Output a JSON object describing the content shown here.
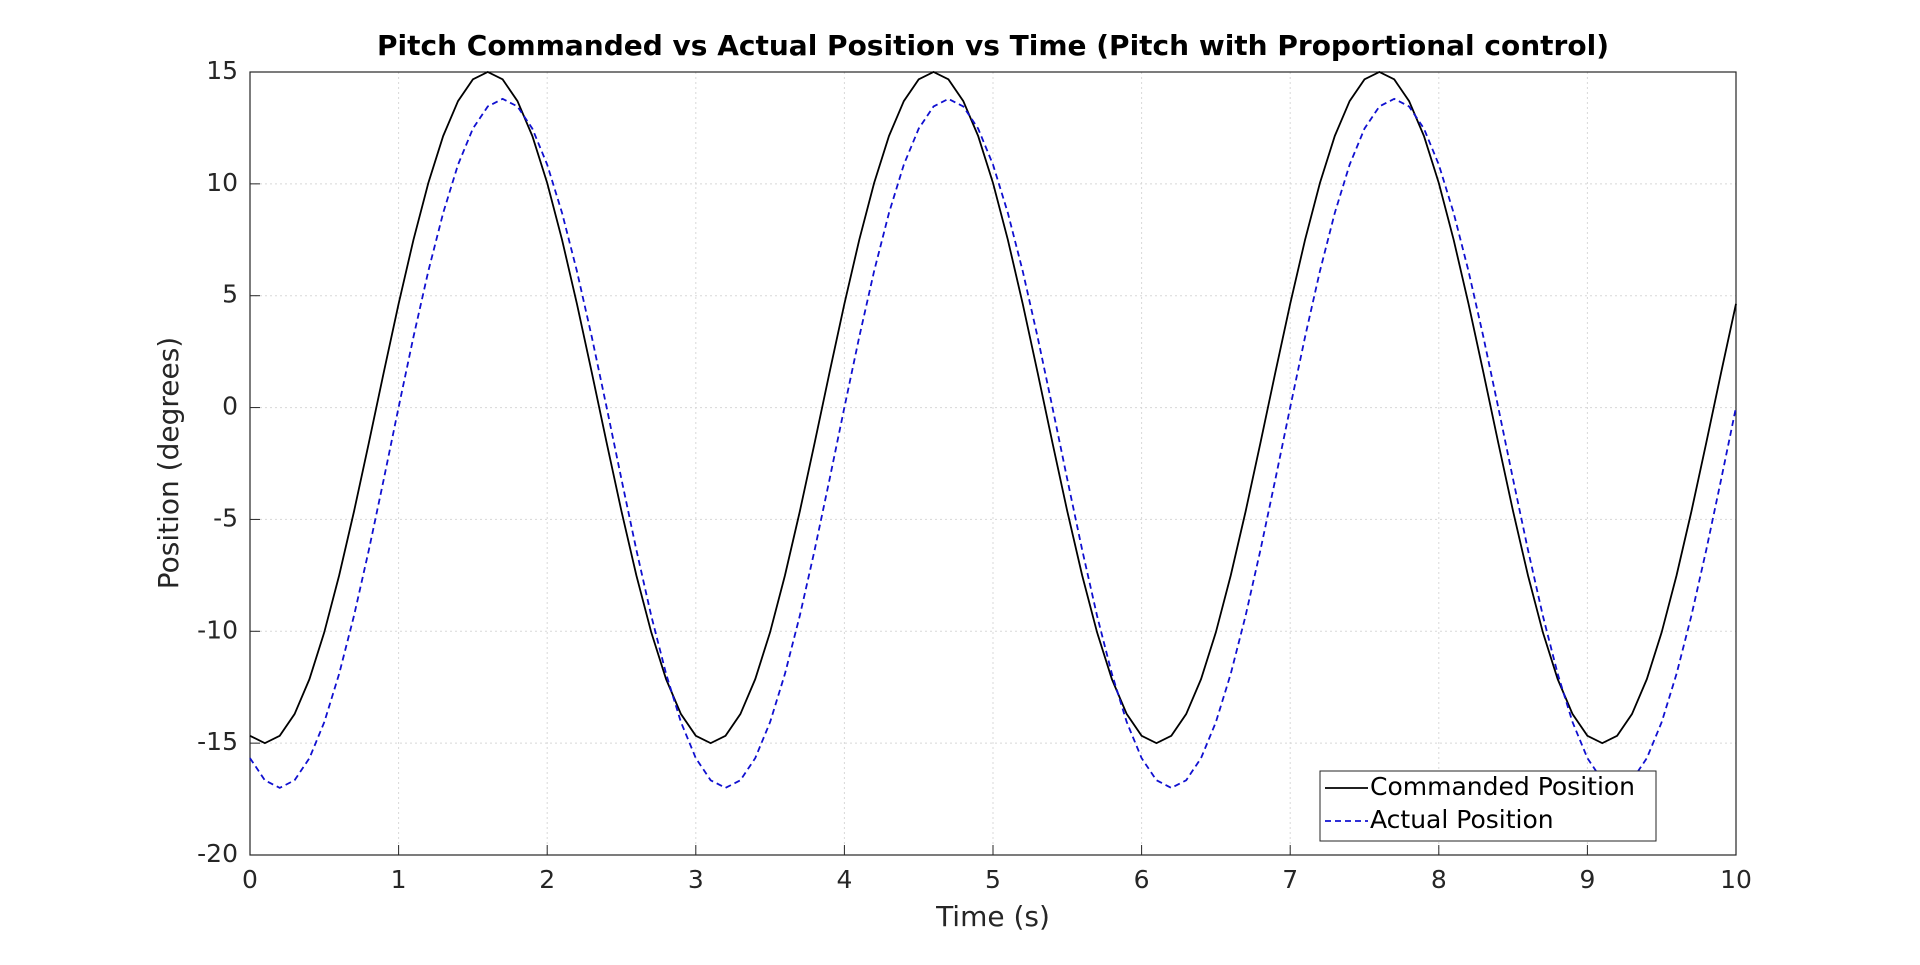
{
  "chart_data": {
    "type": "line",
    "title": "Pitch Commanded vs Actual Position vs Time (Pitch with Proportional control)",
    "x_label": "Time (s)",
    "y_label": "Position (degrees)",
    "x": [
      0,
      0.1,
      0.2,
      0.3,
      0.4,
      0.5,
      0.6,
      0.7,
      0.8,
      0.9,
      1,
      1.1,
      1.2,
      1.3,
      1.4,
      1.5,
      1.6,
      1.7,
      1.8,
      1.9,
      2,
      2.1,
      2.2,
      2.3,
      2.4,
      2.5,
      2.6,
      2.7,
      2.8,
      2.9,
      3,
      3.1,
      3.2,
      3.3,
      3.4,
      3.5,
      3.6,
      3.7,
      3.8,
      3.9,
      4,
      4.1,
      4.2,
      4.3,
      4.4,
      4.5,
      4.6,
      4.7,
      4.8,
      4.9,
      5,
      5.1,
      5.2,
      5.3,
      5.4,
      5.5,
      5.6,
      5.7,
      5.8,
      5.9,
      6,
      6.1,
      6.2,
      6.3,
      6.4,
      6.5,
      6.6,
      6.7,
      6.8,
      6.9,
      7,
      7.1,
      7.2,
      7.3,
      7.4,
      7.5,
      7.6,
      7.7,
      7.8,
      7.9,
      8,
      8.1,
      8.2,
      8.3,
      8.4,
      8.5,
      8.6,
      8.7,
      8.8,
      8.9,
      9,
      9.1,
      9.2,
      9.3,
      9.4,
      9.5,
      9.6,
      9.7,
      9.8,
      9.9,
      10
    ],
    "series": [
      {
        "name": "Commanded Position",
        "color": "#000000",
        "dash": false,
        "values": [
          -14.67,
          -15,
          -14.67,
          -13.7,
          -12.14,
          -10.04,
          -7.5,
          -4.64,
          -1.57,
          1.57,
          4.64,
          7.5,
          10.04,
          12.14,
          13.7,
          14.67,
          15,
          14.67,
          13.7,
          12.14,
          10.04,
          7.5,
          4.64,
          1.57,
          -1.57,
          -4.64,
          -7.5,
          -10.04,
          -12.14,
          -13.7,
          -14.67,
          -15,
          -14.67,
          -13.7,
          -12.14,
          -10.04,
          -7.5,
          -4.64,
          -1.57,
          1.57,
          4.64,
          7.5,
          10.04,
          12.14,
          13.7,
          14.67,
          15,
          14.67,
          13.7,
          12.14,
          10.04,
          7.5,
          4.64,
          1.57,
          -1.57,
          -4.64,
          -7.5,
          -10.04,
          -12.14,
          -13.7,
          -14.67,
          -15,
          -14.67,
          -13.7,
          -12.14,
          -10.04,
          -7.5,
          -4.64,
          -1.57,
          1.57,
          4.64,
          7.5,
          10.04,
          12.14,
          13.7,
          14.67,
          15,
          14.67,
          13.7,
          12.14,
          10.04,
          7.5,
          4.64,
          1.57,
          -1.57,
          -4.64,
          -7.5,
          -10.04,
          -12.14,
          -13.7,
          -14.67,
          -15,
          -14.67,
          -13.7,
          -12.14,
          -10.04,
          -7.5,
          -4.64,
          -1.57,
          1.57,
          4.64
        ]
      },
      {
        "name": "Actual Position",
        "color": "#1010d0",
        "dash": true,
        "values": [
          -15.67,
          -16.66,
          -17,
          -16.66,
          -15.67,
          -14.06,
          -11.9,
          -9.3,
          -6.36,
          -3.21,
          0.01,
          3.16,
          6.1,
          8.7,
          10.86,
          12.47,
          13.46,
          13.8,
          13.46,
          12.47,
          10.86,
          8.7,
          6.1,
          3.16,
          0.01,
          -3.21,
          -6.36,
          -9.3,
          -11.9,
          -14.06,
          -15.67,
          -16.66,
          -17,
          -16.66,
          -15.67,
          -14.06,
          -11.9,
          -9.3,
          -6.36,
          -3.21,
          0.01,
          3.16,
          6.1,
          8.7,
          10.86,
          12.47,
          13.46,
          13.8,
          13.46,
          12.47,
          10.86,
          8.7,
          6.1,
          3.16,
          0.01,
          -3.21,
          -6.36,
          -9.3,
          -11.9,
          -14.06,
          -15.67,
          -16.66,
          -17,
          -16.66,
          -15.67,
          -14.06,
          -11.9,
          -9.3,
          -6.36,
          -3.21,
          0.01,
          3.16,
          6.1,
          8.7,
          10.86,
          12.47,
          13.46,
          13.8,
          13.46,
          12.47,
          10.86,
          8.7,
          6.1,
          3.16,
          0.01,
          -3.21,
          -6.36,
          -9.3,
          -11.9,
          -14.06,
          -15.67,
          -16.66,
          -17,
          -16.66,
          -15.67,
          -14.06,
          -11.9,
          -9.3,
          -6.36,
          -3.21,
          0.01
        ]
      }
    ],
    "xlim": [
      0,
      10
    ],
    "xticks": [
      0,
      1,
      2,
      3,
      4,
      5,
      6,
      7,
      8,
      9,
      10
    ],
    "ylim": [
      -20,
      15
    ],
    "yticks": [
      -20,
      -15,
      -10,
      -5,
      0,
      5,
      10,
      15
    ],
    "grid": true,
    "legend": "lower right"
  }
}
